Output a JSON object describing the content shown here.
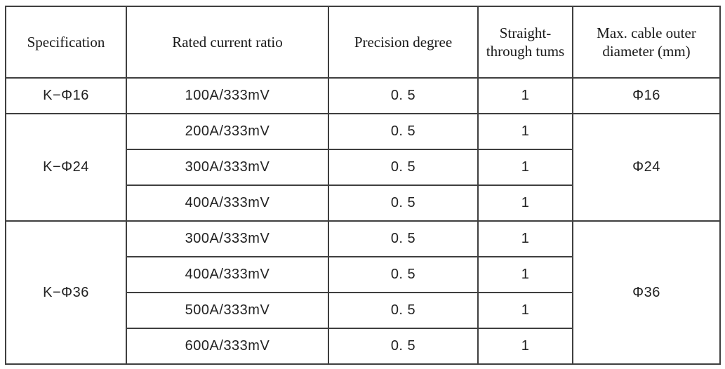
{
  "table": {
    "headers": [
      "Specification",
      "Rated current ratio",
      "Precision degree",
      "Straight-through tums",
      "Max. cable outer diameter (mm)"
    ],
    "groups": [
      {
        "specification": "K−Φ16",
        "max_cable_outer_diameter": "Φ16",
        "rows": [
          {
            "rated_current_ratio": "100A/333mV",
            "precision_degree": "0. 5",
            "straight_through_tums": "1"
          }
        ]
      },
      {
        "specification": "K−Φ24",
        "max_cable_outer_diameter": "Φ24",
        "rows": [
          {
            "rated_current_ratio": "200A/333mV",
            "precision_degree": "0. 5",
            "straight_through_tums": "1"
          },
          {
            "rated_current_ratio": "300A/333mV",
            "precision_degree": "0. 5",
            "straight_through_tums": "1"
          },
          {
            "rated_current_ratio": "400A/333mV",
            "precision_degree": "0. 5",
            "straight_through_tums": "1"
          }
        ]
      },
      {
        "specification": "K−Φ36",
        "max_cable_outer_diameter": "Φ36",
        "rows": [
          {
            "rated_current_ratio": "300A/333mV",
            "precision_degree": "0. 5",
            "straight_through_tums": "1"
          },
          {
            "rated_current_ratio": "400A/333mV",
            "precision_degree": "0. 5",
            "straight_through_tums": "1"
          },
          {
            "rated_current_ratio": "500A/333mV",
            "precision_degree": "0. 5",
            "straight_through_tums": "1"
          },
          {
            "rated_current_ratio": "600A/333mV",
            "precision_degree": "0. 5",
            "straight_through_tums": "1"
          }
        ]
      }
    ]
  }
}
